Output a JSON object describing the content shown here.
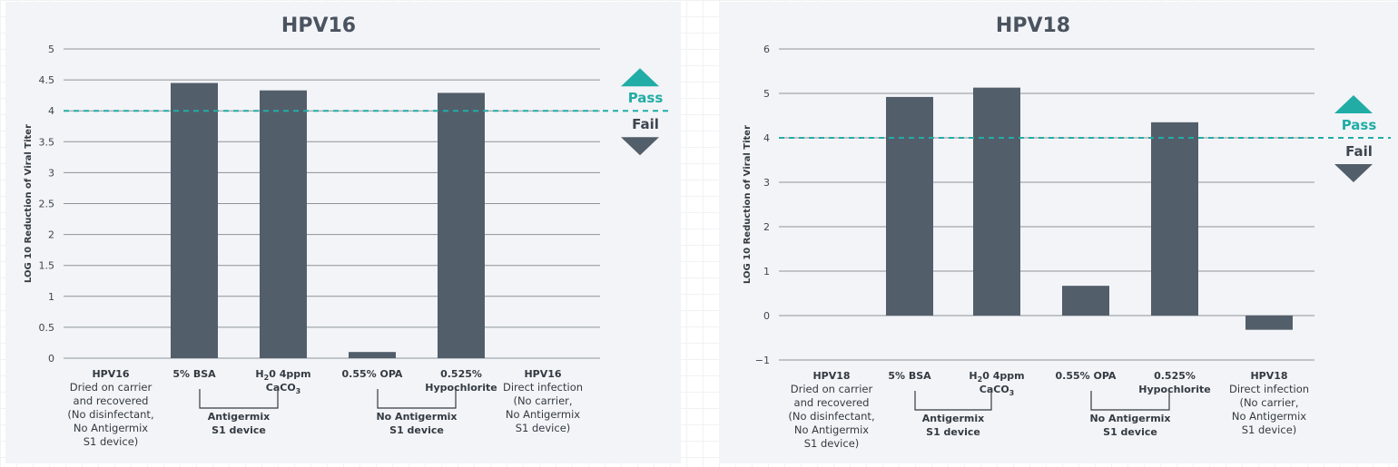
{
  "chart_data": [
    {
      "type": "bar",
      "title": "HPV16",
      "ylabel": "LOG 10 Reduction of Viral Titer",
      "xlabel": "",
      "ylim": [
        0,
        5
      ],
      "yticks": [
        "0",
        "0.5",
        "1",
        "1.5",
        "2",
        "2.5",
        "3",
        "3.5",
        "4",
        "4.5",
        "5"
      ],
      "categories": [
        "HPV16 Dried on carrier and recovered (No disinfectant, No Antigermix S1 device)",
        "5% BSA",
        "H2O 4ppm CaCO3",
        "0.55% OPA",
        "0.525% Hypochlorite",
        "HPV16 Direct infection (No carrier, No Antigermix S1 device)"
      ],
      "category_lines": [
        [
          {
            "t": "HPV16",
            "b": true
          },
          {
            "t": "Dried on carrier"
          },
          {
            "t": "and recovered"
          },
          {
            "t": "(No disinfectant,"
          },
          {
            "t": "No Antigermix"
          },
          {
            "t": "S1 device)"
          }
        ],
        [
          {
            "t": "5% BSA",
            "b": true
          }
        ],
        [
          {
            "t": "H",
            "sub": "2",
            "rest": "0 4ppm",
            "b": true
          },
          {
            "t": "CaCO",
            "sub": "3",
            "rest": "",
            "b": true
          }
        ],
        [
          {
            "t": "0.55% OPA",
            "b": true
          }
        ],
        [
          {
            "t": "0.525%",
            "b": true
          },
          {
            "t": "Hypochlorite",
            "b": true
          }
        ],
        [
          {
            "t": "HPV16",
            "b": true
          },
          {
            "t": "Direct infection"
          },
          {
            "t": "(No carrier,"
          },
          {
            "t": "No Antigermix"
          },
          {
            "t": "S1 device)"
          }
        ]
      ],
      "values": [
        0,
        4.45,
        4.33,
        0.1,
        4.29,
        0
      ],
      "threshold": 4,
      "pass_label": "Pass",
      "fail_label": "Fail",
      "groups": [
        {
          "from": 1,
          "to": 2,
          "lines": [
            "Antigermix",
            "S1 device"
          ]
        },
        {
          "from": 3,
          "to": 4,
          "lines": [
            "No Antigermix",
            "S1 device"
          ]
        }
      ]
    },
    {
      "type": "bar",
      "title": "HPV18",
      "ylabel": "LOG 10 Reduction of Viral Titer",
      "xlabel": "",
      "ylim": [
        -1,
        6
      ],
      "yticks": [
        "−1",
        "0",
        "1",
        "2",
        "3",
        "4",
        "5",
        "6"
      ],
      "categories": [
        "HPV18 Dried on carrier and recovered (No disinfectant, No Antigermix S1 device)",
        "5% BSA",
        "H2O 4ppm CaCO3",
        "0.55% OPA",
        "0.525% Hypochlorite",
        "HPV18 Direct infection (No carrier, No Antigermix S1 device)"
      ],
      "category_lines": [
        [
          {
            "t": "HPV18",
            "b": true
          },
          {
            "t": "Dried on carrier"
          },
          {
            "t": "and recovered"
          },
          {
            "t": "(No disinfectant,"
          },
          {
            "t": "No Antigermix"
          },
          {
            "t": "S1 device)"
          }
        ],
        [
          {
            "t": "5% BSA",
            "b": true
          }
        ],
        [
          {
            "t": "H",
            "sub": "2",
            "rest": "0 4ppm",
            "b": true
          },
          {
            "t": "CaCO",
            "sub": "3",
            "rest": "",
            "b": true
          }
        ],
        [
          {
            "t": "0.55% OPA",
            "b": true
          }
        ],
        [
          {
            "t": "0.525%",
            "b": true
          },
          {
            "t": "Hypochlorite",
            "b": true
          }
        ],
        [
          {
            "t": "HPV18",
            "b": true
          },
          {
            "t": "Direct infection"
          },
          {
            "t": "(No carrier,"
          },
          {
            "t": "No Antigermix"
          },
          {
            "t": "S1 device)"
          }
        ]
      ],
      "values": [
        0,
        4.92,
        5.13,
        0.67,
        4.35,
        -0.32
      ],
      "threshold": 4,
      "pass_label": "Pass",
      "fail_label": "Fail",
      "groups": [
        {
          "from": 1,
          "to": 2,
          "lines": [
            "Antigermix",
            "S1 device"
          ]
        },
        {
          "from": 3,
          "to": 4,
          "lines": [
            "No Antigermix",
            "S1 device"
          ]
        }
      ]
    }
  ],
  "colors": {
    "bar": "#535e6b",
    "threshold": "#21ada6",
    "panel_background": "#f3f4f7"
  }
}
